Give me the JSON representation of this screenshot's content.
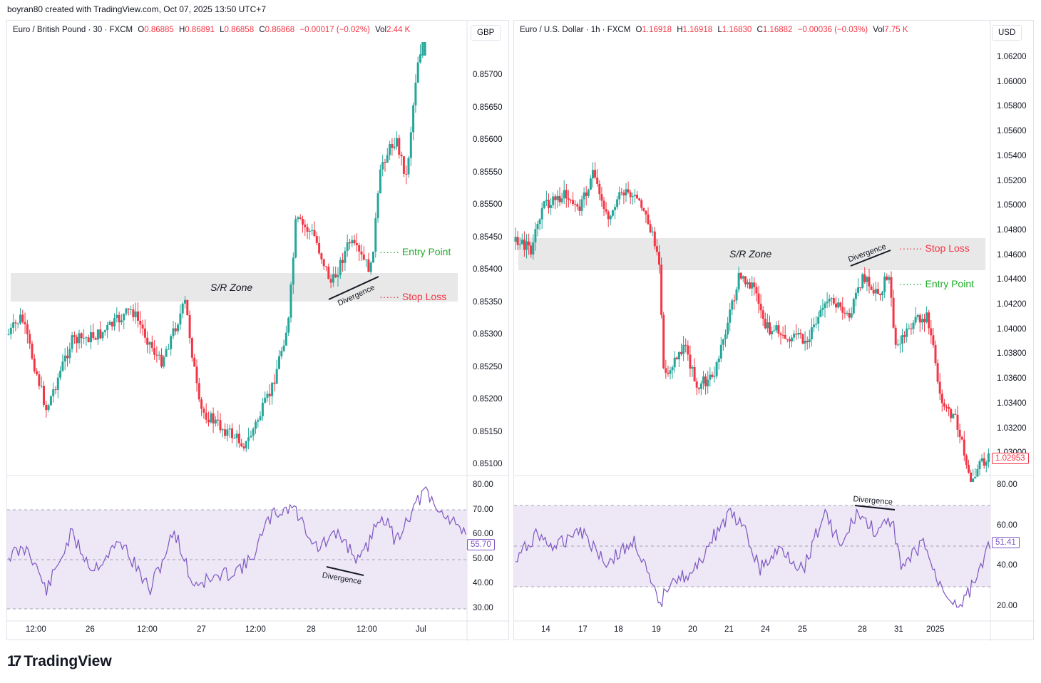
{
  "topline": "boyran80 created with TradingView.com, Oct 07, 2025 13:50 UTC+7",
  "brand": {
    "icon": "tradingview-logo-icon",
    "name": "TradingView"
  },
  "colors": {
    "up": "#26a69a",
    "down": "#f23645",
    "rsi": "#7e57c2",
    "rsi_band": "#ede7f6",
    "zone": "#e8e8e8",
    "green": "#22ab2a",
    "red": "#f23645"
  },
  "left": {
    "symbol": "Euro / British Pound · 30 · FXCM",
    "o_key": "O",
    "o": "0.86885",
    "h_key": "H",
    "h": "0.86891",
    "l_key": "L",
    "l": "0.86858",
    "c_key": "C",
    "c": "0.86868",
    "change": "−0.00017 (−0.02%)",
    "vol_key": "Vol",
    "vol": "2.44 K",
    "currency": "GBP",
    "price_ticks": [
      "0.85700",
      "0.85650",
      "0.85600",
      "0.85550",
      "0.85500",
      "0.85450",
      "0.85400",
      "0.85350",
      "0.85300",
      "0.85250",
      "0.85200",
      "0.85150",
      "0.85100"
    ],
    "rsi_ticks": [
      "80.00",
      "70.00",
      "60.00",
      "50.00",
      "40.00",
      "30.00"
    ],
    "rsi_value": "55.70",
    "time_labels": [
      "12:00",
      "26",
      "12:00",
      "27",
      "12:00",
      "28",
      "12:00",
      "Jul"
    ],
    "zone_label": "S/R Zone",
    "entry_label": "Entry Point",
    "stop_label": "Stop Loss",
    "divergence_price": "Divergence",
    "divergence_rsi": "Divergence"
  },
  "right": {
    "symbol": "Euro / U.S. Dollar · 1h · FXCM",
    "o_key": "O",
    "o": "1.16918",
    "h_key": "H",
    "h": "1.16918",
    "l_key": "L",
    "l": "1.16830",
    "c_key": "C",
    "c": "1.16882",
    "change": "−0.00036 (−0.03%)",
    "vol_key": "Vol",
    "vol": "7.75 K",
    "currency": "USD",
    "price_ticks": [
      "1.06200",
      "1.06000",
      "1.05800",
      "1.05600",
      "1.05400",
      "1.05200",
      "1.05000",
      "1.04800",
      "1.04600",
      "1.04400",
      "1.04200",
      "1.04000",
      "1.03800",
      "1.03600",
      "1.03400",
      "1.03200",
      "1.03000"
    ],
    "last_price": "1.02953",
    "rsi_ticks": [
      "80.00",
      "60.00",
      "40.00",
      "20.00"
    ],
    "rsi_value": "51.41",
    "time_labels": [
      "14",
      "17",
      "18",
      "19",
      "20",
      "21",
      "24",
      "25",
      "28",
      "31",
      "2025"
    ],
    "zone_label": "S/R Zone",
    "entry_label": "Entry Point",
    "stop_label": "Stop Loss",
    "divergence_price": "Divergence",
    "divergence_rsi": "Divergence"
  }
}
